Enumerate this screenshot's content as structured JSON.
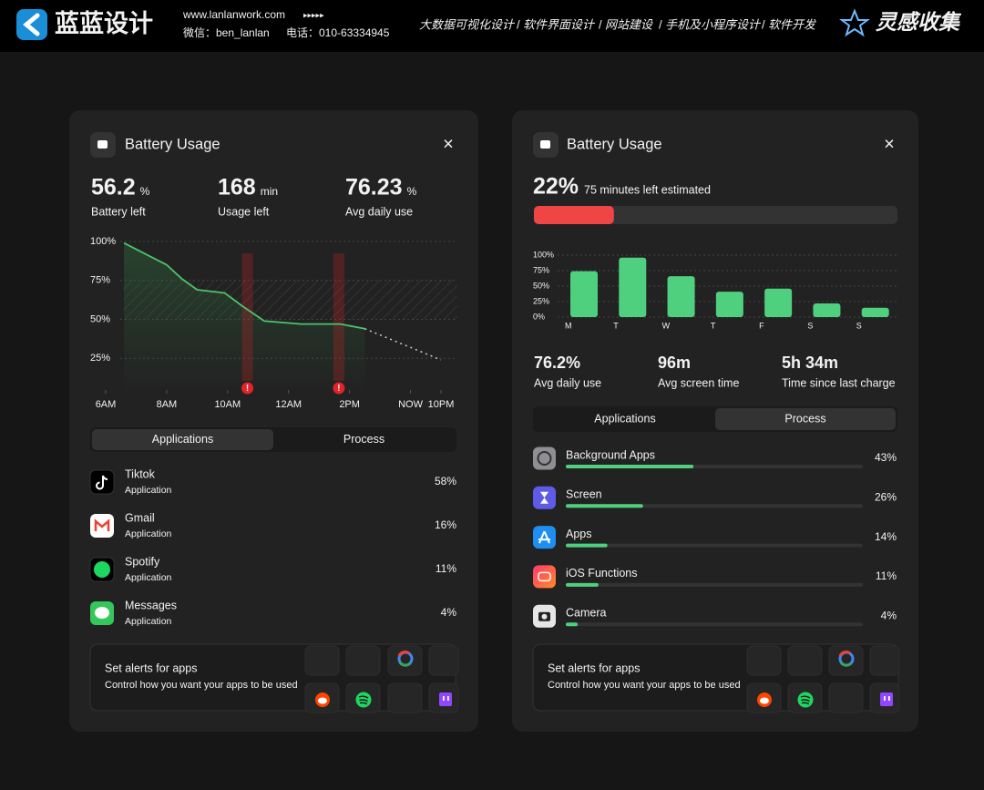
{
  "header": {
    "brand": "蓝蓝设计",
    "url": "www.lanlanwork.com",
    "arrows": "▸▸▸▸▸",
    "wechat": "微信：ben_lanlan",
    "phone": "电话：010-63334945",
    "services": [
      "大数据可视化设计",
      "软件界面设计",
      "网站建设",
      "手机及小程序设计",
      "软件开发"
    ],
    "separator": "/",
    "collection": "灵感收集"
  },
  "left_card": {
    "title": "Battery Usage",
    "close": "×",
    "stats": [
      {
        "value": 56.2,
        "unit": "%",
        "label": "Battery left",
        "color": "#ffffff"
      },
      {
        "value": 168,
        "unit": "min",
        "label": "Usage left",
        "color": "#f5c518"
      },
      {
        "value": 76.23,
        "unit": "%",
        "label": "Avg daily use",
        "color": "#ffffff"
      }
    ],
    "chart": {
      "type": "line",
      "xlim": [
        6,
        17
      ],
      "ylim": [
        0,
        100
      ],
      "xticks": [
        {
          "value": 6,
          "label": "6AM"
        },
        {
          "value": 8,
          "label": "8AM"
        },
        {
          "value": 10,
          "label": "10AM"
        },
        {
          "value": 12,
          "label": "12AM"
        },
        {
          "value": 14,
          "label": "2PM"
        },
        {
          "value": 16,
          "label": "NOW"
        },
        {
          "value": 17,
          "label": "10PM"
        }
      ],
      "yticks": [
        {
          "value": 100,
          "label": "100%"
        },
        {
          "value": 75,
          "label": "75%"
        },
        {
          "value": 50,
          "label": "50%"
        },
        {
          "value": 25,
          "label": "25%"
        }
      ],
      "line": {
        "color": "#4cc46a",
        "x": [
          6.6,
          7.6,
          8,
          8.5,
          9,
          9.9,
          10.45,
          11.2,
          12.4,
          13.7,
          14.5
        ],
        "values": [
          99,
          89,
          85,
          76,
          69,
          67,
          59,
          49,
          47,
          47,
          44
        ]
      },
      "forecast": {
        "color": "#cfcfcf",
        "x": [
          14.5,
          17
        ],
        "values": [
          44,
          24
        ]
      },
      "target_band": [
        50,
        75
      ],
      "alerts": [
        {
          "x": 10.65,
          "label": "!"
        },
        {
          "x": 13.65,
          "label": "!"
        }
      ]
    },
    "tabs": [
      "Applications",
      "Process"
    ],
    "apps": [
      {
        "name": "Tiktok",
        "kind": "Application",
        "share": "58%"
      },
      {
        "name": "Gmail",
        "kind": "Application",
        "share": "16%"
      },
      {
        "name": "Spotify",
        "kind": "Application",
        "share": "11%"
      },
      {
        "name": "Messages",
        "kind": "Application",
        "share": "4%"
      }
    ],
    "alerts_box": {
      "title": "Set alerts for apps",
      "subtitle": "Control how you want your apps to be used"
    }
  },
  "right_card": {
    "title": "Battery Usage",
    "close": "×",
    "battery": {
      "value": 22,
      "label": "22%",
      "color": "#f04545"
    },
    "estimate": "75 minutes left estimated",
    "chart": {
      "type": "bar",
      "categories": [
        "M",
        "T",
        "W",
        "T",
        "F",
        "S",
        "S"
      ],
      "values": [
        74,
        96,
        66,
        41,
        46,
        22,
        15
      ],
      "color": "#4fd07f",
      "ylim": [
        0,
        100
      ],
      "yticks": [
        {
          "value": 0,
          "label": "0%"
        },
        {
          "value": 25,
          "label": "25%"
        },
        {
          "value": 50,
          "label": "50%"
        },
        {
          "value": 75,
          "label": "75%"
        },
        {
          "value": 100,
          "label": "100%"
        }
      ]
    },
    "stats": [
      {
        "value": "76.2%",
        "label": "Avg daily use"
      },
      {
        "value": "96m",
        "label": "Avg screen time"
      },
      {
        "value": "5h 34m",
        "label": "Time since last charge"
      }
    ],
    "tabs": [
      "Applications",
      "Process"
    ],
    "processes": [
      {
        "name": "Background Apps",
        "value": 43,
        "label": "43%"
      },
      {
        "name": "Screen",
        "value": 26,
        "label": "26%"
      },
      {
        "name": "Apps",
        "value": 14,
        "label": "14%"
      },
      {
        "name": "iOS Functions",
        "value": 11,
        "label": "11%"
      },
      {
        "name": "Camera",
        "value": 4,
        "label": "4%"
      }
    ],
    "bar_color": "#4fd07f",
    "alerts_box": {
      "title": "Set alerts for apps",
      "subtitle": "Control how you want your apps to be used"
    }
  }
}
